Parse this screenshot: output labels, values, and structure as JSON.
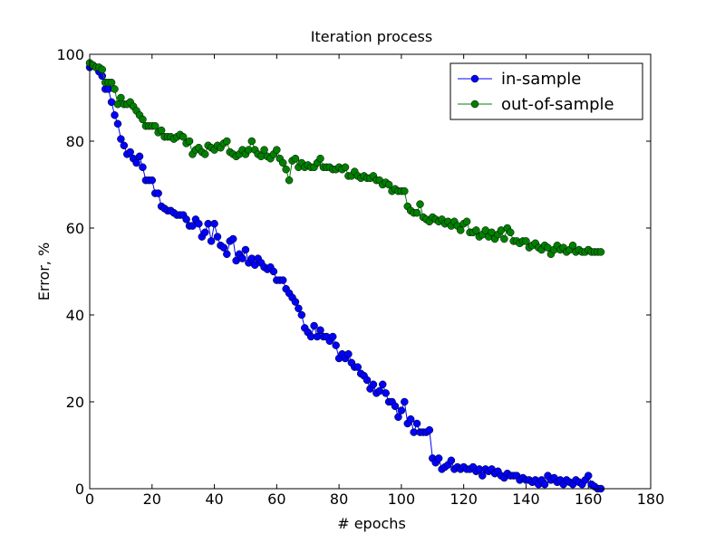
{
  "chart_data": {
    "type": "line",
    "title": "Iteration process",
    "xlabel": "# epochs",
    "ylabel": "Error, %",
    "x": [
      0,
      1,
      2,
      3,
      4,
      5,
      6,
      7,
      8,
      9,
      10,
      11,
      12,
      13,
      14,
      15,
      16,
      17,
      18,
      19,
      20,
      21,
      22,
      23,
      24,
      25,
      26,
      27,
      28,
      29,
      30,
      31,
      32,
      33,
      34,
      35,
      36,
      37,
      38,
      39,
      40,
      41,
      42,
      43,
      44,
      45,
      46,
      47,
      48,
      49,
      50,
      51,
      52,
      53,
      54,
      55,
      56,
      57,
      58,
      59,
      60,
      61,
      62,
      63,
      64,
      65,
      66,
      67,
      68,
      69,
      70,
      71,
      72,
      73,
      74,
      75,
      76,
      77,
      78,
      79,
      80,
      81,
      82,
      83,
      84,
      85,
      86,
      87,
      88,
      89,
      90,
      91,
      92,
      93,
      94,
      95,
      96,
      97,
      98,
      99,
      100,
      101,
      102,
      103,
      104,
      105,
      106,
      107,
      108,
      109,
      110,
      111,
      112,
      113,
      114,
      115,
      116,
      117,
      118,
      119,
      120,
      121,
      122,
      123,
      124,
      125,
      126,
      127,
      128,
      129,
      130,
      131,
      132,
      133,
      134,
      135,
      136,
      137,
      138,
      139,
      140,
      141,
      142,
      143,
      144,
      145,
      146,
      147,
      148,
      149,
      150,
      151,
      152,
      153,
      154,
      155,
      156,
      157,
      158,
      159,
      160,
      161,
      162,
      163,
      164
    ],
    "series": [
      {
        "name": "in-sample",
        "color": "#0000ff",
        "values": [
          97,
          97.5,
          97,
          96,
          95,
          92,
          92,
          89,
          86,
          84,
          80.5,
          79,
          77,
          77.5,
          76,
          75,
          76.5,
          74,
          71,
          71,
          71,
          68,
          68,
          65,
          64.5,
          64,
          64,
          63.5,
          63,
          63,
          63,
          62,
          60.5,
          60.5,
          62,
          61,
          58,
          59,
          61,
          57,
          61,
          58,
          56,
          55.5,
          54,
          57,
          57.5,
          52.5,
          54,
          53,
          55,
          52,
          53,
          51.5,
          53,
          52,
          51,
          50.5,
          51,
          50,
          48,
          48,
          48,
          46,
          45,
          44,
          43,
          41.5,
          40,
          37,
          36,
          35,
          37.5,
          35,
          36.5,
          35,
          35,
          34,
          35,
          33,
          30,
          31,
          30,
          31,
          29,
          28,
          28,
          26.5,
          26,
          25,
          23,
          24,
          22,
          22.5,
          24,
          22,
          20,
          20,
          19,
          16.5,
          18,
          20,
          15,
          16,
          13,
          15,
          13,
          13,
          13,
          13.5,
          7,
          6,
          7,
          4.5,
          5,
          5.5,
          6.5,
          4.5,
          5,
          4.5,
          5,
          4.5,
          4.5,
          5,
          4,
          4.5,
          3,
          4.5,
          4,
          4.5,
          3.5,
          4,
          3,
          2.5,
          3.5,
          3,
          3,
          3,
          2,
          2.5,
          2,
          2,
          1.5,
          2,
          1,
          2,
          1,
          3,
          2,
          2.5,
          1.5,
          2,
          1,
          2,
          1.5,
          1,
          2,
          1.5,
          1,
          2,
          3,
          1,
          0.5,
          0,
          0
        ]
      },
      {
        "name": "out-of-sample",
        "color": "#008000",
        "values": [
          98,
          97.5,
          97,
          97,
          96.5,
          93.5,
          93.5,
          93.5,
          92,
          88.5,
          90,
          88.5,
          88.5,
          89,
          88,
          87,
          86,
          85,
          83.5,
          83.5,
          83.5,
          83.5,
          82,
          82.5,
          81,
          81,
          81,
          80.5,
          81,
          81.5,
          81,
          79.5,
          80,
          77,
          78,
          78.5,
          77.5,
          77,
          79,
          78.5,
          78,
          79,
          78.5,
          79.5,
          80,
          77.5,
          77,
          76.5,
          77,
          78,
          77,
          78,
          80,
          78,
          77,
          76.5,
          78,
          76.5,
          76,
          77,
          78,
          76,
          75,
          73.5,
          71,
          75.5,
          76,
          74,
          75,
          74,
          74.5,
          74,
          74,
          75,
          76,
          74,
          74,
          74,
          73.5,
          73.5,
          74,
          73.5,
          74,
          72,
          72,
          73,
          72,
          71.5,
          72,
          71.5,
          71.5,
          72,
          71,
          71,
          70,
          70.5,
          70,
          68.5,
          69,
          68.5,
          68.5,
          68.5,
          65,
          64,
          63.5,
          63.5,
          65.5,
          62.5,
          62,
          61.5,
          62.5,
          62,
          61.5,
          62,
          61,
          61.5,
          60.5,
          61.5,
          60.5,
          59.5,
          61,
          61.5,
          59,
          59,
          59.5,
          58,
          58.5,
          59.5,
          58,
          59,
          57.5,
          58.5,
          59.5,
          57.5,
          60,
          59,
          57,
          57,
          56.5,
          57,
          57,
          55.5,
          56,
          56.5,
          55.5,
          55,
          56,
          55.5,
          54,
          55,
          56,
          55,
          55.5,
          54.5,
          55,
          56,
          54.5,
          55,
          54.5,
          54.5,
          55,
          54.5,
          54.5,
          54.5,
          54.5
        ]
      }
    ],
    "xlim": [
      0,
      180
    ],
    "xticks": [
      0,
      20,
      40,
      60,
      80,
      100,
      120,
      140,
      160,
      180
    ],
    "ylim": [
      0,
      100
    ],
    "yticks": [
      0,
      20,
      40,
      60,
      80,
      100
    ],
    "grid": false,
    "legend": "upper right"
  }
}
